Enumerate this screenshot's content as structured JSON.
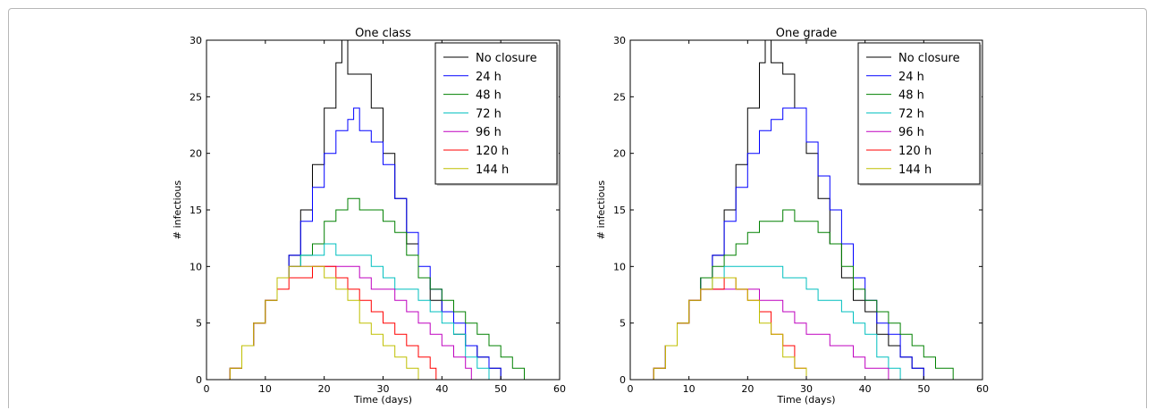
{
  "chart_data": [
    {
      "type": "line",
      "title": "One class",
      "xlabel": "Time (days)",
      "ylabel": "# infectious",
      "xlim": [
        0,
        60
      ],
      "ylim": [
        0,
        30
      ],
      "xticks": [
        0,
        10,
        20,
        30,
        40,
        50,
        60
      ],
      "yticks": [
        0,
        5,
        10,
        15,
        20,
        25,
        30
      ],
      "grid": false,
      "legend_position": "top-right",
      "series": [
        {
          "name": "No closure",
          "color": "#000000",
          "x": [
            0,
            2,
            4,
            6,
            8,
            10,
            12,
            14,
            16,
            18,
            20,
            22,
            23,
            24,
            26,
            28,
            30,
            32,
            34,
            36,
            38,
            40,
            42,
            44,
            46,
            48,
            50,
            52,
            54,
            56,
            58
          ],
          "y": [
            0,
            0,
            1,
            3,
            5,
            7,
            9,
            11,
            15,
            19,
            24,
            28,
            30,
            27,
            27,
            24,
            20,
            16,
            12,
            9,
            7,
            6,
            4,
            3,
            2,
            1,
            0,
            0,
            0,
            0,
            0
          ]
        },
        {
          "name": "24 h",
          "color": "#0000ff",
          "x": [
            0,
            2,
            4,
            6,
            8,
            10,
            12,
            14,
            16,
            18,
            20,
            22,
            24,
            25,
            26,
            28,
            30,
            32,
            34,
            36,
            38,
            40,
            42,
            44,
            46,
            48,
            50,
            52
          ],
          "y": [
            0,
            0,
            1,
            3,
            5,
            7,
            9,
            11,
            14,
            17,
            20,
            22,
            23,
            24,
            22,
            21,
            19,
            16,
            13,
            10,
            8,
            6,
            5,
            3,
            2,
            1,
            0,
            0
          ]
        },
        {
          "name": "48 h",
          "color": "#008000",
          "x": [
            0,
            2,
            4,
            6,
            8,
            10,
            12,
            14,
            16,
            18,
            20,
            22,
            24,
            26,
            28,
            30,
            32,
            34,
            36,
            38,
            40,
            42,
            44,
            46,
            48,
            50,
            52,
            54,
            56
          ],
          "y": [
            0,
            0,
            1,
            3,
            5,
            7,
            9,
            10,
            11,
            12,
            14,
            15,
            16,
            15,
            15,
            14,
            13,
            11,
            9,
            8,
            7,
            6,
            5,
            4,
            3,
            2,
            1,
            0,
            0
          ]
        },
        {
          "name": "72 h",
          "color": "#00bfbf",
          "x": [
            0,
            2,
            4,
            6,
            8,
            10,
            12,
            14,
            16,
            18,
            20,
            22,
            24,
            26,
            28,
            30,
            32,
            34,
            36,
            38,
            40,
            42,
            44,
            46,
            48
          ],
          "y": [
            0,
            0,
            1,
            3,
            5,
            7,
            9,
            10,
            11,
            11,
            12,
            11,
            11,
            11,
            10,
            9,
            8,
            8,
            7,
            6,
            5,
            4,
            2,
            1,
            0
          ]
        },
        {
          "name": "96 h",
          "color": "#bf00bf",
          "x": [
            0,
            2,
            4,
            6,
            8,
            10,
            12,
            14,
            16,
            18,
            20,
            22,
            24,
            26,
            28,
            30,
            32,
            34,
            36,
            38,
            40,
            42,
            44,
            45
          ],
          "y": [
            0,
            0,
            1,
            3,
            5,
            7,
            9,
            10,
            10,
            10,
            10,
            10,
            10,
            9,
            8,
            8,
            7,
            6,
            5,
            4,
            3,
            2,
            1,
            0
          ]
        },
        {
          "name": "120 h",
          "color": "#ff0000",
          "x": [
            0,
            2,
            4,
            6,
            8,
            10,
            12,
            14,
            16,
            18,
            20,
            22,
            24,
            26,
            28,
            30,
            32,
            34,
            36,
            38,
            39
          ],
          "y": [
            0,
            0,
            1,
            3,
            5,
            7,
            8,
            9,
            9,
            10,
            10,
            9,
            8,
            7,
            6,
            5,
            4,
            3,
            2,
            1,
            0
          ]
        },
        {
          "name": "144 h",
          "color": "#bfbf00",
          "x": [
            0,
            2,
            4,
            6,
            8,
            10,
            12,
            14,
            16,
            18,
            20,
            22,
            24,
            26,
            28,
            30,
            32,
            34,
            36,
            38
          ],
          "y": [
            0,
            0,
            1,
            3,
            5,
            7,
            9,
            10,
            10,
            10,
            9,
            8,
            7,
            5,
            4,
            3,
            2,
            1,
            0,
            0
          ]
        }
      ]
    },
    {
      "type": "line",
      "title": "One grade",
      "xlabel": "Time (days)",
      "ylabel": "# infectious",
      "xlim": [
        0,
        60
      ],
      "ylim": [
        0,
        30
      ],
      "xticks": [
        0,
        10,
        20,
        30,
        40,
        50,
        60
      ],
      "yticks": [
        0,
        5,
        10,
        15,
        20,
        25,
        30
      ],
      "grid": false,
      "legend_position": "top-right",
      "series": [
        {
          "name": "No closure",
          "color": "#000000",
          "x": [
            0,
            2,
            4,
            6,
            8,
            10,
            12,
            14,
            16,
            18,
            20,
            22,
            23,
            24,
            26,
            28,
            30,
            32,
            34,
            36,
            38,
            40,
            42,
            44,
            46,
            48,
            50,
            52,
            54,
            56,
            58
          ],
          "y": [
            0,
            0,
            1,
            3,
            5,
            7,
            9,
            11,
            15,
            19,
            24,
            28,
            30,
            28,
            27,
            24,
            20,
            16,
            12,
            9,
            7,
            6,
            4,
            3,
            2,
            1,
            0,
            0,
            0,
            0,
            0
          ]
        },
        {
          "name": "24 h",
          "color": "#0000ff",
          "x": [
            0,
            2,
            4,
            6,
            8,
            10,
            12,
            14,
            16,
            18,
            20,
            22,
            24,
            26,
            28,
            30,
            32,
            34,
            36,
            38,
            40,
            42,
            44,
            46,
            48,
            50,
            52
          ],
          "y": [
            0,
            0,
            1,
            3,
            5,
            7,
            9,
            11,
            14,
            17,
            20,
            22,
            23,
            24,
            24,
            21,
            18,
            15,
            12,
            9,
            7,
            5,
            4,
            2,
            1,
            0,
            0
          ]
        },
        {
          "name": "48 h",
          "color": "#008000",
          "x": [
            0,
            2,
            4,
            6,
            8,
            10,
            12,
            14,
            16,
            18,
            20,
            22,
            24,
            26,
            28,
            30,
            32,
            34,
            36,
            38,
            40,
            42,
            44,
            46,
            48,
            50,
            52,
            54,
            55
          ],
          "y": [
            0,
            0,
            1,
            3,
            5,
            7,
            9,
            10,
            11,
            12,
            13,
            14,
            14,
            15,
            14,
            14,
            13,
            12,
            10,
            8,
            7,
            6,
            5,
            4,
            3,
            2,
            1,
            1,
            0
          ]
        },
        {
          "name": "72 h",
          "color": "#00bfbf",
          "x": [
            0,
            2,
            4,
            6,
            8,
            10,
            12,
            14,
            16,
            18,
            20,
            22,
            24,
            26,
            28,
            30,
            32,
            34,
            36,
            38,
            40,
            42,
            44,
            46
          ],
          "y": [
            0,
            0,
            1,
            3,
            5,
            7,
            8,
            9,
            10,
            10,
            10,
            10,
            10,
            9,
            9,
            8,
            7,
            7,
            6,
            5,
            4,
            2,
            1,
            0
          ]
        },
        {
          "name": "96 h",
          "color": "#bf00bf",
          "x": [
            0,
            2,
            4,
            6,
            8,
            10,
            12,
            14,
            16,
            18,
            20,
            22,
            24,
            26,
            28,
            30,
            32,
            34,
            36,
            38,
            40,
            42,
            44,
            46
          ],
          "y": [
            0,
            0,
            1,
            3,
            5,
            7,
            8,
            8,
            8,
            8,
            8,
            7,
            7,
            6,
            5,
            4,
            4,
            3,
            3,
            2,
            1,
            1,
            0,
            0
          ]
        },
        {
          "name": "120 h",
          "color": "#ff0000",
          "x": [
            0,
            2,
            4,
            6,
            8,
            10,
            12,
            14,
            16,
            18,
            20,
            22,
            24,
            26,
            28,
            29,
            30
          ],
          "y": [
            0,
            0,
            1,
            3,
            5,
            7,
            8,
            8,
            9,
            8,
            7,
            6,
            4,
            3,
            1,
            1,
            0
          ]
        },
        {
          "name": "144 h",
          "color": "#bfbf00",
          "x": [
            0,
            2,
            4,
            6,
            8,
            10,
            12,
            14,
            16,
            18,
            20,
            22,
            24,
            26,
            28,
            30
          ],
          "y": [
            0,
            0,
            1,
            3,
            5,
            7,
            8,
            9,
            9,
            8,
            7,
            5,
            4,
            2,
            1,
            0
          ]
        }
      ]
    }
  ]
}
